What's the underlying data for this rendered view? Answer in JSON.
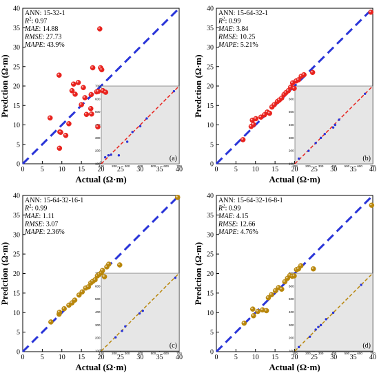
{
  "chart_data": [
    {
      "type": "scatter",
      "panel_label": "(a)",
      "xlabel": "Actual (Ω·m)",
      "ylabel": "Predction (Ω·m)",
      "xlim": [
        0,
        40
      ],
      "ylim": [
        0,
        40
      ],
      "xticks": [
        "0",
        "5",
        "10",
        "15",
        "20",
        "25",
        "30",
        "35",
        "40"
      ],
      "yticks": [
        "0",
        "5",
        "10",
        "15",
        "20",
        "25",
        "30",
        "35",
        "40"
      ],
      "stats": [
        {
          "label": "ANN",
          "value": ": 15-32-1"
        },
        {
          "label": "R",
          "sup": "2",
          "value": ": 0.97"
        },
        {
          "label": "MAE",
          "value": ": 14.88"
        },
        {
          "label": "RMSE",
          "value": ": 27.73"
        },
        {
          "label": "MAPE",
          "value": ": 43.9%"
        }
      ],
      "marker_color": "#e8231e",
      "ref_line_color": "#2a35d8",
      "points": [
        {
          "x": 7.0,
          "y": 11.8
        },
        {
          "x": 9.3,
          "y": 22.8
        },
        {
          "x": 9.4,
          "y": 4.0
        },
        {
          "x": 9.5,
          "y": 8.2
        },
        {
          "x": 9.7,
          "y": 8.1
        },
        {
          "x": 11.0,
          "y": 7.3
        },
        {
          "x": 11.8,
          "y": 10.3
        },
        {
          "x": 12.6,
          "y": 18.8
        },
        {
          "x": 13.0,
          "y": 20.5
        },
        {
          "x": 13.4,
          "y": 17.9
        },
        {
          "x": 14.2,
          "y": 20.9
        },
        {
          "x": 15.5,
          "y": 19.6
        },
        {
          "x": 15.0,
          "y": 15.2
        },
        {
          "x": 15.9,
          "y": 17.0
        },
        {
          "x": 16.3,
          "y": 12.7
        },
        {
          "x": 17.4,
          "y": 14.2
        },
        {
          "x": 17.6,
          "y": 12.8
        },
        {
          "x": 17.5,
          "y": 17.8
        },
        {
          "x": 17.9,
          "y": 24.7
        },
        {
          "x": 18.9,
          "y": 18.5
        },
        {
          "x": 19.2,
          "y": 9.5
        },
        {
          "x": 19.3,
          "y": 18.6
        },
        {
          "x": 19.7,
          "y": 34.7
        },
        {
          "x": 19.9,
          "y": 24.7
        },
        {
          "x": 20.2,
          "y": 24.2
        },
        {
          "x": 20.5,
          "y": 18.8
        },
        {
          "x": 21.2,
          "y": 18.4
        }
      ],
      "inset": {
        "xlim": [
          100,
          700
        ],
        "ylim": [
          100,
          700
        ],
        "xticks": [
          "100",
          "200",
          "300",
          "400",
          "500",
          "600",
          "700"
        ],
        "yticks": [
          "100",
          "200",
          "300",
          "400",
          "500",
          "600",
          "700"
        ],
        "ref_line_color": "#e8231e",
        "point_color": "#2a35d8",
        "points": [
          {
            "x": 130,
            "y": 150
          },
          {
            "x": 155,
            "y": 165
          },
          {
            "x": 175,
            "y": 170
          },
          {
            "x": 235,
            "y": 165
          },
          {
            "x": 300,
            "y": 270
          },
          {
            "x": 340,
            "y": 345
          },
          {
            "x": 400,
            "y": 390
          },
          {
            "x": 450,
            "y": 450
          },
          {
            "x": 660,
            "y": 660
          }
        ]
      }
    },
    {
      "type": "scatter",
      "panel_label": "(b)",
      "xlabel": "Actual (Ω·m)",
      "ylabel": "Predction (Ω·m)",
      "xlim": [
        0,
        40
      ],
      "ylim": [
        0,
        40
      ],
      "xticks": [
        "0",
        "5",
        "10",
        "15",
        "20",
        "25",
        "30",
        "35",
        "40"
      ],
      "yticks": [
        "0",
        "5",
        "10",
        "15",
        "20",
        "25",
        "30",
        "35",
        "40"
      ],
      "stats": [
        {
          "label": "ANN",
          "value": ": 15-64-32-1"
        },
        {
          "label": "R",
          "sup": "2",
          "value": ": 0.99"
        },
        {
          "label": "MAE",
          "value": ": 3.84"
        },
        {
          "label": "RMSE",
          "value": ": 10.25"
        },
        {
          "label": "MAPE",
          "value": ": 5.21%"
        }
      ],
      "marker_color": "#e8231e",
      "ref_line_color": "#2a35d8",
      "points": [
        {
          "x": 6.8,
          "y": 6.2
        },
        {
          "x": 8.9,
          "y": 9.6
        },
        {
          "x": 9.2,
          "y": 11.2
        },
        {
          "x": 9.5,
          "y": 10.1
        },
        {
          "x": 10.1,
          "y": 11.6
        },
        {
          "x": 11.4,
          "y": 12.0
        },
        {
          "x": 12.3,
          "y": 12.6
        },
        {
          "x": 13.0,
          "y": 13.3
        },
        {
          "x": 13.6,
          "y": 13.0
        },
        {
          "x": 14.2,
          "y": 14.6
        },
        {
          "x": 14.8,
          "y": 15.2
        },
        {
          "x": 15.6,
          "y": 16.0
        },
        {
          "x": 16.1,
          "y": 16.4
        },
        {
          "x": 16.7,
          "y": 16.9
        },
        {
          "x": 17.3,
          "y": 17.8
        },
        {
          "x": 17.8,
          "y": 18.3
        },
        {
          "x": 18.4,
          "y": 18.8
        },
        {
          "x": 19.0,
          "y": 19.7
        },
        {
          "x": 19.5,
          "y": 20.8
        },
        {
          "x": 19.9,
          "y": 19.4
        },
        {
          "x": 20.4,
          "y": 21.3
        },
        {
          "x": 21.0,
          "y": 21.6
        },
        {
          "x": 21.7,
          "y": 22.5
        },
        {
          "x": 22.4,
          "y": 22.9
        },
        {
          "x": 24.6,
          "y": 23.5
        },
        {
          "x": 39.5,
          "y": 39.0
        }
      ],
      "inset": {
        "xlim": [
          100,
          700
        ],
        "ylim": [
          100,
          700
        ],
        "xticks": [
          "100",
          "200",
          "300",
          "400",
          "500",
          "600",
          "700"
        ],
        "yticks": [
          "100",
          "200",
          "300",
          "400",
          "500",
          "600",
          "700"
        ],
        "ref_line_color": "#e8231e",
        "point_color": "#2a35d8",
        "points": [
          {
            "x": 130,
            "y": 140
          },
          {
            "x": 205,
            "y": 200
          },
          {
            "x": 260,
            "y": 260
          },
          {
            "x": 300,
            "y": 300
          },
          {
            "x": 330,
            "y": 330
          },
          {
            "x": 395,
            "y": 380
          },
          {
            "x": 410,
            "y": 400
          },
          {
            "x": 440,
            "y": 440
          },
          {
            "x": 640,
            "y": 640
          }
        ]
      }
    },
    {
      "type": "scatter",
      "panel_label": "(c)",
      "xlabel": "Actual (Ω·m)",
      "ylabel": "Predction (Ω·m)",
      "xlim": [
        0,
        40
      ],
      "ylim": [
        0,
        40
      ],
      "xticks": [
        "0",
        "5",
        "10",
        "15",
        "20",
        "25",
        "30",
        "35",
        "40"
      ],
      "yticks": [
        "0",
        "5",
        "10",
        "15",
        "20",
        "25",
        "30",
        "35",
        "40"
      ],
      "stats": [
        {
          "label": "ANN",
          "value": ": 15-64-32-16-1"
        },
        {
          "label": "R",
          "sup": "2",
          "value": ": 0.99"
        },
        {
          "label": "MAE",
          "value": ": 1.11"
        },
        {
          "label": "RMSE",
          "value": ": 3.07"
        },
        {
          "label": "MAPE",
          "value": ": 2.36%"
        }
      ],
      "marker_color": "#b8860b",
      "ref_line_color": "#2a35d8",
      "points": [
        {
          "x": 7.2,
          "y": 7.6
        },
        {
          "x": 9.3,
          "y": 9.6
        },
        {
          "x": 9.4,
          "y": 10.1
        },
        {
          "x": 10.6,
          "y": 11.0
        },
        {
          "x": 11.8,
          "y": 11.9
        },
        {
          "x": 12.6,
          "y": 12.5
        },
        {
          "x": 13.3,
          "y": 13.2
        },
        {
          "x": 14.4,
          "y": 14.5
        },
        {
          "x": 15.2,
          "y": 15.3
        },
        {
          "x": 16.1,
          "y": 16.3
        },
        {
          "x": 16.8,
          "y": 16.6
        },
        {
          "x": 17.4,
          "y": 17.6
        },
        {
          "x": 17.9,
          "y": 18.0
        },
        {
          "x": 18.5,
          "y": 18.4
        },
        {
          "x": 19.1,
          "y": 19.4
        },
        {
          "x": 19.6,
          "y": 19.8
        },
        {
          "x": 20.1,
          "y": 20.2
        },
        {
          "x": 20.4,
          "y": 20.8
        },
        {
          "x": 20.9,
          "y": 19.2
        },
        {
          "x": 21.5,
          "y": 21.7
        },
        {
          "x": 22.0,
          "y": 22.4
        },
        {
          "x": 24.8,
          "y": 22.2
        },
        {
          "x": 39.6,
          "y": 39.5
        }
      ],
      "inset": {
        "xlim": [
          100,
          700
        ],
        "ylim": [
          100,
          700
        ],
        "xticks": [
          "100",
          "200",
          "300",
          "400",
          "500",
          "600",
          "700"
        ],
        "yticks": [
          "100",
          "200",
          "300",
          "400",
          "500",
          "600",
          "700"
        ],
        "ref_line_color": "#b8860b",
        "point_color": "#2a35d8",
        "points": [
          {
            "x": 210,
            "y": 205
          },
          {
            "x": 260,
            "y": 255
          },
          {
            "x": 285,
            "y": 290
          },
          {
            "x": 395,
            "y": 390
          },
          {
            "x": 420,
            "y": 410
          },
          {
            "x": 670,
            "y": 665
          }
        ]
      }
    },
    {
      "type": "scatter",
      "panel_label": "(d)",
      "xlabel": "Actual (Ω·m)",
      "ylabel": "Predction (Ω·m)",
      "xlim": [
        0,
        40
      ],
      "ylim": [
        0,
        40
      ],
      "xticks": [
        "0",
        "5",
        "10",
        "15",
        "20",
        "25",
        "30",
        "35",
        "40"
      ],
      "yticks": [
        "0",
        "5",
        "10",
        "15",
        "20",
        "25",
        "30",
        "35",
        "40"
      ],
      "stats": [
        {
          "label": "ANN",
          "value": ": 15-64-32-16-8-1"
        },
        {
          "label": "R",
          "sup": "2",
          "value": ": 0.99"
        },
        {
          "label": "MAE",
          "value": ": 4.15"
        },
        {
          "label": "RMSE",
          "value": ": 12.66"
        },
        {
          "label": "MAPE",
          "value": ": 4.76%"
        }
      ],
      "marker_color": "#b8860b",
      "ref_line_color": "#2a35d8",
      "points": [
        {
          "x": 7.1,
          "y": 7.3
        },
        {
          "x": 9.3,
          "y": 10.9
        },
        {
          "x": 9.5,
          "y": 9.2
        },
        {
          "x": 10.6,
          "y": 10.3
        },
        {
          "x": 11.8,
          "y": 10.7
        },
        {
          "x": 12.8,
          "y": 10.5
        },
        {
          "x": 13.3,
          "y": 13.8
        },
        {
          "x": 14.1,
          "y": 14.6
        },
        {
          "x": 15.1,
          "y": 15.6
        },
        {
          "x": 15.9,
          "y": 16.4
        },
        {
          "x": 16.7,
          "y": 16.0
        },
        {
          "x": 17.5,
          "y": 17.9
        },
        {
          "x": 18.2,
          "y": 18.8
        },
        {
          "x": 18.8,
          "y": 19.5
        },
        {
          "x": 19.4,
          "y": 19.3
        },
        {
          "x": 19.9,
          "y": 19.4
        },
        {
          "x": 20.5,
          "y": 21.0
        },
        {
          "x": 21.0,
          "y": 21.2
        },
        {
          "x": 21.6,
          "y": 22.0
        },
        {
          "x": 24.8,
          "y": 21.2
        },
        {
          "x": 39.7,
          "y": 37.5
        }
      ],
      "inset": {
        "xlim": [
          100,
          700
        ],
        "ylim": [
          100,
          700
        ],
        "xticks": [
          "100",
          "200",
          "300",
          "400",
          "500",
          "600",
          "700"
        ],
        "yticks": [
          "100",
          "200",
          "300",
          "400",
          "500",
          "600",
          "700"
        ],
        "ref_line_color": "#b8860b",
        "point_color": "#2a35d8",
        "points": [
          {
            "x": 130,
            "y": 130
          },
          {
            "x": 215,
            "y": 210
          },
          {
            "x": 260,
            "y": 265
          },
          {
            "x": 280,
            "y": 285
          },
          {
            "x": 300,
            "y": 300
          },
          {
            "x": 340,
            "y": 345
          },
          {
            "x": 395,
            "y": 395
          },
          {
            "x": 610,
            "y": 610
          }
        ]
      }
    }
  ]
}
